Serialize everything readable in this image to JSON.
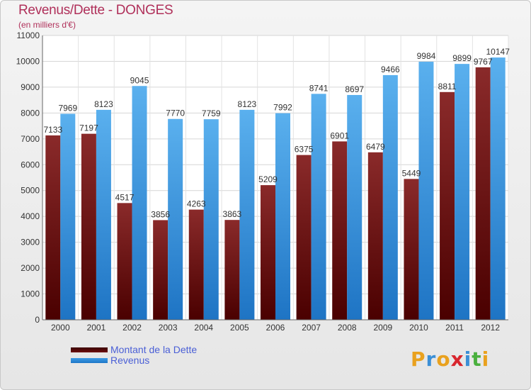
{
  "header": {
    "title": "Revenus/Dette - DONGES",
    "subtitle": "(en milliers d'€)"
  },
  "logo": {
    "letters": [
      "P",
      "r",
      "o",
      "x",
      "i",
      "t",
      "i"
    ]
  },
  "colors": {
    "dette": "#6e1414",
    "revenus": "#3a9ae6",
    "title": "#b0305a",
    "legend_text": "#4a5fd6"
  },
  "chart_data": {
    "type": "bar",
    "title": "Revenus/Dette - DONGES",
    "subtitle": "(en milliers d'€)",
    "categories": [
      "2000",
      "2001",
      "2002",
      "2003",
      "2004",
      "2005",
      "2006",
      "2007",
      "2008",
      "2009",
      "2010",
      "2011",
      "2012"
    ],
    "series": [
      {
        "name": "Montant de la Dette",
        "values": [
          7133,
          7197,
          4517,
          3856,
          4263,
          3863,
          5209,
          6375,
          6901,
          6479,
          5449,
          8811,
          9767
        ]
      },
      {
        "name": "Revenus",
        "values": [
          7969,
          8123,
          9045,
          7770,
          7759,
          8123,
          7992,
          8741,
          8697,
          9466,
          9984,
          9899,
          10147
        ]
      }
    ],
    "ylim": [
      0,
      11000
    ],
    "yticks": [
      0,
      1000,
      2000,
      3000,
      4000,
      5000,
      6000,
      7000,
      8000,
      9000,
      10000,
      11000
    ],
    "grid": true,
    "legend_position": "bottom-left"
  }
}
